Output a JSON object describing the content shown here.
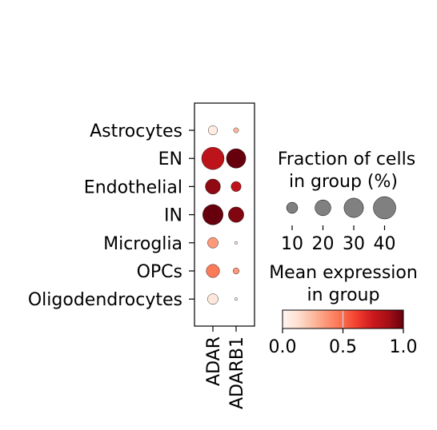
{
  "chart_data": {
    "type": "dotplot",
    "genes": [
      "ADAR",
      "ADARB1"
    ],
    "groups": [
      "Astrocytes",
      "EN",
      "Endothelial",
      "IN",
      "Microglia",
      "OPCs",
      "Oligodendrocytes"
    ],
    "fraction_pct": [
      [
        7,
        2
      ],
      [
        40,
        30
      ],
      [
        18,
        8
      ],
      [
        33,
        19
      ],
      [
        9,
        0.6
      ],
      [
        14,
        3
      ],
      [
        9,
        0.6
      ]
    ],
    "mean_expression": [
      [
        0.05,
        0.25
      ],
      [
        0.8,
        1.0
      ],
      [
        0.92,
        0.8
      ],
      [
        1.0,
        0.95
      ],
      [
        0.35,
        0.08
      ],
      [
        0.45,
        0.35
      ],
      [
        0.08,
        0.05
      ]
    ],
    "size_legend": {
      "title": [
        "Fraction of cells",
        "in group (%)"
      ],
      "values": [
        10,
        20,
        30,
        40
      ],
      "labels": [
        "10",
        "20",
        "30",
        "40"
      ]
    },
    "color_legend": {
      "title": [
        "Mean expression",
        "in group"
      ],
      "colormap": "Reds",
      "range": [
        0.0,
        1.0
      ],
      "ticks": [
        "0.0",
        "0.5",
        "1.0"
      ]
    },
    "grid": false
  }
}
